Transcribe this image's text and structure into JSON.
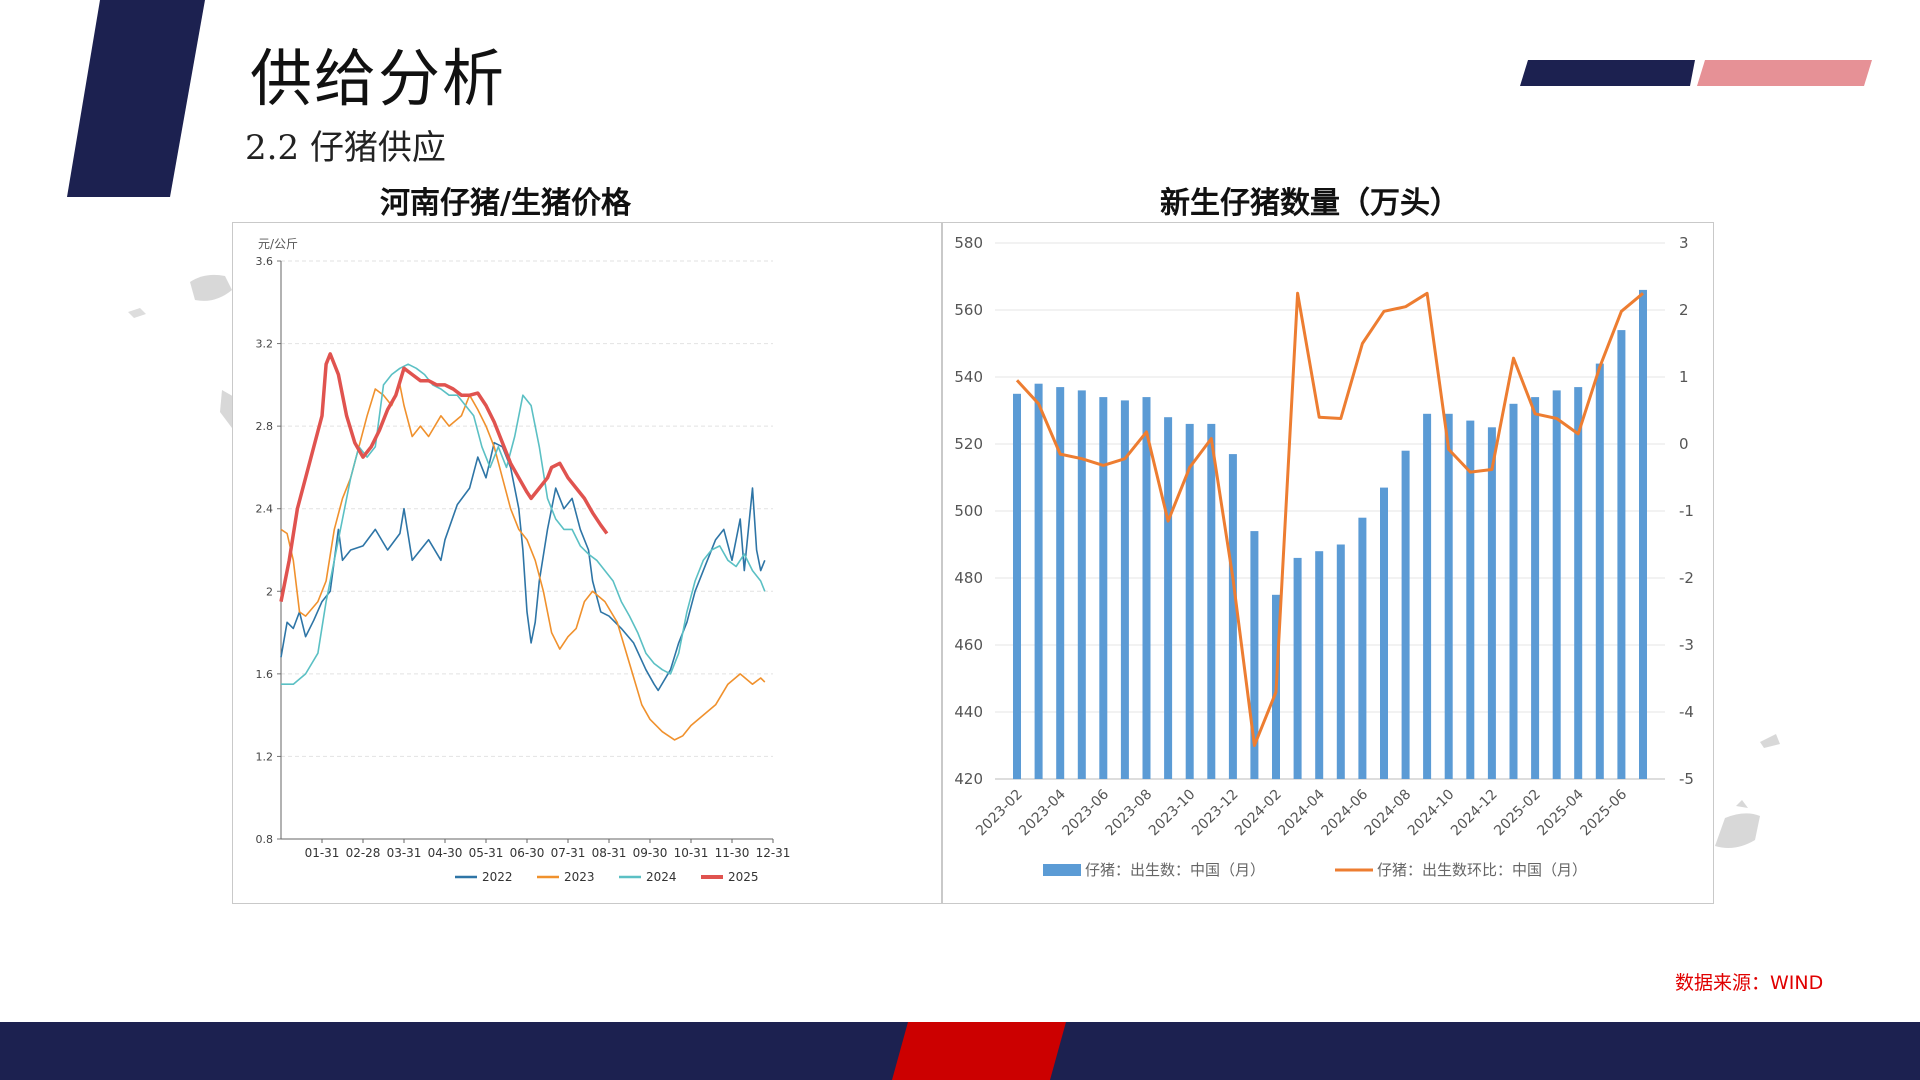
{
  "page": {
    "title": "供给分析",
    "subtitle": "2.2 仔猪供应",
    "source": "数据来源：WIND",
    "colors": {
      "navy": "#1c2150",
      "pink": "#e69196",
      "red": "#cc0000"
    }
  },
  "chart_data": [
    {
      "type": "line",
      "title": "河南仔猪/生猪价格",
      "ylabel": "元/公斤",
      "ylim": [
        0.8,
        3.6
      ],
      "yticks": [
        "0.8",
        "1.2",
        "1.6",
        "2",
        "2.4",
        "2.8",
        "3.2",
        "3.6"
      ],
      "xticks": [
        "01-31",
        "02-28",
        "03-31",
        "04-30",
        "05-31",
        "06-30",
        "07-31",
        "08-31",
        "09-30",
        "10-31",
        "11-30",
        "12-31"
      ],
      "legend": "bottom",
      "grid": true,
      "series": [
        {
          "name": "2022",
          "color": "#2e75a6",
          "points": [
            [
              0.0,
              1.68
            ],
            [
              0.15,
              1.85
            ],
            [
              0.3,
              1.82
            ],
            [
              0.45,
              1.9
            ],
            [
              0.6,
              1.78
            ],
            [
              0.8,
              1.86
            ],
            [
              1.0,
              1.95
            ],
            [
              1.2,
              2.0
            ],
            [
              1.4,
              2.3
            ],
            [
              1.5,
              2.15
            ],
            [
              1.7,
              2.2
            ],
            [
              2.0,
              2.22
            ],
            [
              2.3,
              2.3
            ],
            [
              2.6,
              2.2
            ],
            [
              2.9,
              2.28
            ],
            [
              3.0,
              2.4
            ],
            [
              3.2,
              2.15
            ],
            [
              3.4,
              2.2
            ],
            [
              3.6,
              2.25
            ],
            [
              3.9,
              2.15
            ],
            [
              4.0,
              2.25
            ],
            [
              4.3,
              2.42
            ],
            [
              4.6,
              2.5
            ],
            [
              4.8,
              2.65
            ],
            [
              5.0,
              2.55
            ],
            [
              5.2,
              2.72
            ],
            [
              5.4,
              2.7
            ],
            [
              5.6,
              2.6
            ],
            [
              5.8,
              2.4
            ],
            [
              5.9,
              2.2
            ],
            [
              6.0,
              1.9
            ],
            [
              6.1,
              1.75
            ],
            [
              6.2,
              1.85
            ],
            [
              6.3,
              2.05
            ],
            [
              6.5,
              2.3
            ],
            [
              6.7,
              2.5
            ],
            [
              6.9,
              2.4
            ],
            [
              7.1,
              2.45
            ],
            [
              7.3,
              2.3
            ],
            [
              7.5,
              2.2
            ],
            [
              7.6,
              2.05
            ],
            [
              7.8,
              1.9
            ],
            [
              8.0,
              1.88
            ],
            [
              8.3,
              1.82
            ],
            [
              8.6,
              1.75
            ],
            [
              8.9,
              1.62
            ],
            [
              9.1,
              1.55
            ],
            [
              9.2,
              1.52
            ],
            [
              9.5,
              1.62
            ],
            [
              9.7,
              1.75
            ],
            [
              9.9,
              1.85
            ],
            [
              10.1,
              2.0
            ],
            [
              10.3,
              2.1
            ],
            [
              10.6,
              2.25
            ],
            [
              10.8,
              2.3
            ],
            [
              11.0,
              2.15
            ],
            [
              11.2,
              2.35
            ],
            [
              11.3,
              2.1
            ],
            [
              11.5,
              2.5
            ],
            [
              11.6,
              2.2
            ],
            [
              11.7,
              2.1
            ],
            [
              11.8,
              2.15
            ]
          ]
        },
        {
          "name": "2023",
          "color": "#f0912d",
          "points": [
            [
              0.0,
              2.3
            ],
            [
              0.15,
              2.28
            ],
            [
              0.3,
              2.15
            ],
            [
              0.45,
              1.9
            ],
            [
              0.6,
              1.88
            ],
            [
              0.9,
              1.95
            ],
            [
              1.1,
              2.05
            ],
            [
              1.3,
              2.3
            ],
            [
              1.5,
              2.45
            ],
            [
              1.7,
              2.55
            ],
            [
              1.9,
              2.7
            ],
            [
              2.1,
              2.85
            ],
            [
              2.3,
              2.98
            ],
            [
              2.5,
              2.95
            ],
            [
              2.7,
              2.9
            ],
            [
              2.9,
              3.0
            ],
            [
              3.0,
              2.9
            ],
            [
              3.2,
              2.75
            ],
            [
              3.4,
              2.8
            ],
            [
              3.6,
              2.75
            ],
            [
              3.9,
              2.85
            ],
            [
              4.1,
              2.8
            ],
            [
              4.4,
              2.85
            ],
            [
              4.6,
              2.95
            ],
            [
              4.8,
              2.88
            ],
            [
              5.0,
              2.8
            ],
            [
              5.2,
              2.7
            ],
            [
              5.4,
              2.55
            ],
            [
              5.6,
              2.4
            ],
            [
              5.8,
              2.3
            ],
            [
              6.0,
              2.25
            ],
            [
              6.2,
              2.15
            ],
            [
              6.4,
              2.0
            ],
            [
              6.6,
              1.8
            ],
            [
              6.8,
              1.72
            ],
            [
              7.0,
              1.78
            ],
            [
              7.2,
              1.82
            ],
            [
              7.4,
              1.95
            ],
            [
              7.6,
              2.0
            ],
            [
              7.9,
              1.95
            ],
            [
              8.2,
              1.85
            ],
            [
              8.5,
              1.65
            ],
            [
              8.8,
              1.45
            ],
            [
              9.0,
              1.38
            ],
            [
              9.3,
              1.32
            ],
            [
              9.6,
              1.28
            ],
            [
              9.8,
              1.3
            ],
            [
              10.0,
              1.35
            ],
            [
              10.3,
              1.4
            ],
            [
              10.6,
              1.45
            ],
            [
              10.9,
              1.55
            ],
            [
              11.2,
              1.6
            ],
            [
              11.5,
              1.55
            ],
            [
              11.7,
              1.58
            ],
            [
              11.8,
              1.56
            ]
          ]
        },
        {
          "name": "2024",
          "color": "#5bc0c4",
          "points": [
            [
              0.0,
              1.55
            ],
            [
              0.3,
              1.55
            ],
            [
              0.6,
              1.6
            ],
            [
              0.9,
              1.7
            ],
            [
              1.1,
              1.95
            ],
            [
              1.3,
              2.15
            ],
            [
              1.5,
              2.35
            ],
            [
              1.7,
              2.55
            ],
            [
              1.9,
              2.7
            ],
            [
              2.1,
              2.65
            ],
            [
              2.3,
              2.7
            ],
            [
              2.5,
              3.0
            ],
            [
              2.7,
              3.05
            ],
            [
              2.9,
              3.08
            ],
            [
              3.1,
              3.1
            ],
            [
              3.3,
              3.08
            ],
            [
              3.5,
              3.05
            ],
            [
              3.7,
              3.0
            ],
            [
              3.9,
              2.98
            ],
            [
              4.1,
              2.95
            ],
            [
              4.3,
              2.95
            ],
            [
              4.5,
              2.9
            ],
            [
              4.7,
              2.85
            ],
            [
              4.9,
              2.7
            ],
            [
              5.1,
              2.6
            ],
            [
              5.3,
              2.7
            ],
            [
              5.5,
              2.6
            ],
            [
              5.7,
              2.75
            ],
            [
              5.9,
              2.95
            ],
            [
              6.1,
              2.9
            ],
            [
              6.3,
              2.7
            ],
            [
              6.5,
              2.45
            ],
            [
              6.7,
              2.35
            ],
            [
              6.9,
              2.3
            ],
            [
              7.1,
              2.3
            ],
            [
              7.3,
              2.22
            ],
            [
              7.5,
              2.18
            ],
            [
              7.7,
              2.15
            ],
            [
              7.9,
              2.1
            ],
            [
              8.1,
              2.05
            ],
            [
              8.3,
              1.95
            ],
            [
              8.5,
              1.88
            ],
            [
              8.7,
              1.8
            ],
            [
              8.9,
              1.7
            ],
            [
              9.1,
              1.65
            ],
            [
              9.3,
              1.62
            ],
            [
              9.5,
              1.6
            ],
            [
              9.7,
              1.7
            ],
            [
              9.9,
              1.9
            ],
            [
              10.1,
              2.05
            ],
            [
              10.3,
              2.15
            ],
            [
              10.5,
              2.2
            ],
            [
              10.7,
              2.22
            ],
            [
              10.9,
              2.15
            ],
            [
              11.1,
              2.12
            ],
            [
              11.3,
              2.18
            ],
            [
              11.5,
              2.1
            ],
            [
              11.7,
              2.05
            ],
            [
              11.8,
              2.0
            ]
          ]
        },
        {
          "name": "2025",
          "color": "#e0534f",
          "points": [
            [
              0.0,
              1.95
            ],
            [
              0.2,
              2.15
            ],
            [
              0.4,
              2.4
            ],
            [
              0.6,
              2.55
            ],
            [
              0.8,
              2.7
            ],
            [
              1.0,
              2.85
            ],
            [
              1.1,
              3.1
            ],
            [
              1.2,
              3.15
            ],
            [
              1.4,
              3.05
            ],
            [
              1.6,
              2.85
            ],
            [
              1.8,
              2.72
            ],
            [
              2.0,
              2.65
            ],
            [
              2.2,
              2.7
            ],
            [
              2.4,
              2.78
            ],
            [
              2.6,
              2.88
            ],
            [
              2.8,
              2.95
            ],
            [
              3.0,
              3.08
            ],
            [
              3.2,
              3.05
            ],
            [
              3.4,
              3.02
            ],
            [
              3.6,
              3.02
            ],
            [
              3.8,
              3.0
            ],
            [
              4.0,
              3.0
            ],
            [
              4.2,
              2.98
            ],
            [
              4.4,
              2.95
            ],
            [
              4.6,
              2.95
            ],
            [
              4.8,
              2.96
            ],
            [
              5.0,
              2.9
            ],
            [
              5.2,
              2.82
            ],
            [
              5.4,
              2.72
            ],
            [
              5.6,
              2.62
            ],
            [
              5.8,
              2.55
            ],
            [
              6.0,
              2.48
            ],
            [
              6.1,
              2.45
            ],
            [
              6.3,
              2.5
            ],
            [
              6.5,
              2.55
            ],
            [
              6.6,
              2.6
            ],
            [
              6.8,
              2.62
            ],
            [
              7.0,
              2.55
            ],
            [
              7.2,
              2.5
            ],
            [
              7.4,
              2.45
            ],
            [
              7.6,
              2.38
            ],
            [
              7.8,
              2.32
            ],
            [
              7.95,
              2.28
            ]
          ]
        }
      ]
    },
    {
      "type": "bar+line",
      "title": "新生仔猪数量（万头）",
      "ylim": [
        420,
        580
      ],
      "yticks": [
        "420",
        "440",
        "460",
        "480",
        "500",
        "520",
        "540",
        "560",
        "580"
      ],
      "y2lim": [
        -5,
        3
      ],
      "y2ticks": [
        "-5",
        "-4",
        "-3",
        "-2",
        "-1",
        "0",
        "1",
        "2",
        "3"
      ],
      "categories": [
        "2023-02",
        "2023-03",
        "2023-04",
        "2023-05",
        "2023-06",
        "2023-07",
        "2023-08",
        "2023-09",
        "2023-10",
        "2023-11",
        "2023-12",
        "2024-01",
        "2024-02",
        "2024-03",
        "2024-04",
        "2024-05",
        "2024-06",
        "2024-07",
        "2024-08",
        "2024-09",
        "2024-10",
        "2024-11",
        "2024-12",
        "2025-01",
        "2025-02",
        "2025-03",
        "2025-04",
        "2025-05",
        "2025-06",
        "2025-07"
      ],
      "xticks": [
        "2023-02",
        "2023-04",
        "2023-06",
        "2023-08",
        "2023-10",
        "2023-12",
        "2024-02",
        "2024-04",
        "2024-06",
        "2024-08",
        "2024-10",
        "2024-12",
        "2025-02",
        "2025-04",
        "2025-06"
      ],
      "legend": "bottom",
      "series": [
        {
          "name": "仔猪：出生数：中国（月）",
          "type": "bar",
          "axis": "left",
          "color": "#5b9bd5",
          "values": [
            535,
            538,
            537,
            536,
            534,
            533,
            534,
            528,
            526,
            526,
            517,
            494,
            475,
            486,
            488,
            490,
            498,
            507,
            518,
            529,
            529,
            527,
            525,
            532,
            534,
            536,
            537,
            544,
            554,
            566
          ]
        },
        {
          "name": "仔猪：出生数环比：中国（月）",
          "type": "line",
          "axis": "right",
          "color": "#ed7d31",
          "values": [
            0.95,
            0.6,
            -0.15,
            -0.22,
            -0.32,
            -0.22,
            0.18,
            -1.15,
            -0.35,
            0.08,
            -2.0,
            -4.5,
            -3.7,
            2.25,
            0.4,
            0.38,
            1.5,
            1.98,
            2.05,
            2.25,
            -0.08,
            -0.42,
            -0.38,
            1.28,
            0.45,
            0.38,
            0.15,
            1.15,
            1.98,
            2.25
          ]
        }
      ]
    }
  ]
}
